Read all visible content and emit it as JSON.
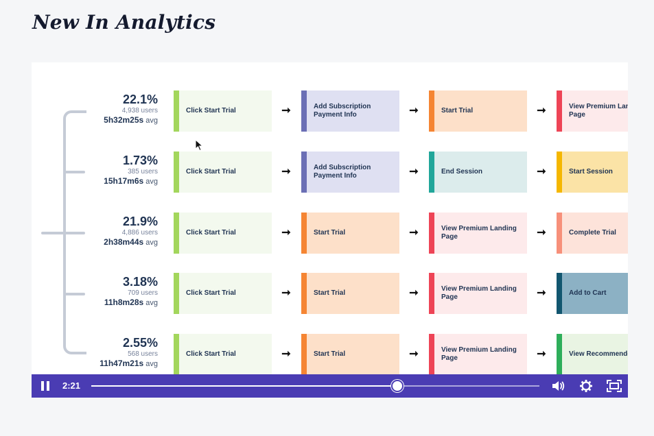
{
  "page": {
    "heading": "New In Analytics"
  },
  "video": {
    "rows": [
      {
        "percent": "22.1%",
        "users": "4,938 users",
        "avg_time": "5h32m25s",
        "avg_suffix": " avg",
        "steps": [
          {
            "label": "Click Start Trial",
            "bg": "#f3f9ee",
            "accent": "#a3d65c"
          },
          {
            "label": "Add Subscription Payment Info",
            "bg": "#dfe0f2",
            "accent": "#6b6fb5"
          },
          {
            "label": "Start Trial",
            "bg": "#fde0c9",
            "accent": "#f58533"
          },
          {
            "label": "View Premium Landing Page",
            "bg": "#fdeaeb",
            "accent": "#ee4456"
          }
        ]
      },
      {
        "percent": "1.73%",
        "users": "385 users",
        "avg_time": "15h17m6s",
        "avg_suffix": " avg",
        "steps": [
          {
            "label": "Click Start Trial",
            "bg": "#f3f9ee",
            "accent": "#a3d65c"
          },
          {
            "label": "Add Subscription Payment Info",
            "bg": "#dfe0f2",
            "accent": "#6b6fb5"
          },
          {
            "label": "End Session",
            "bg": "#dcecec",
            "accent": "#21a69a"
          },
          {
            "label": "Start Session",
            "bg": "#fbe3a6",
            "accent": "#f5b700"
          }
        ]
      },
      {
        "percent": "21.9%",
        "users": "4,886 users",
        "avg_time": "2h38m44s",
        "avg_suffix": " avg",
        "steps": [
          {
            "label": "Click Start Trial",
            "bg": "#f3f9ee",
            "accent": "#a3d65c"
          },
          {
            "label": "Start Trial",
            "bg": "#fde0c9",
            "accent": "#f58533"
          },
          {
            "label": "View Premium Landing Page",
            "bg": "#fdeaeb",
            "accent": "#ee4456"
          },
          {
            "label": "Complete Trial",
            "bg": "#fde3da",
            "accent": "#f7907a"
          }
        ]
      },
      {
        "percent": "3.18%",
        "users": "709 users",
        "avg_time": "11h8m28s",
        "avg_suffix": " avg",
        "steps": [
          {
            "label": "Click Start Trial",
            "bg": "#f3f9ee",
            "accent": "#a3d65c"
          },
          {
            "label": "Start Trial",
            "bg": "#fde0c9",
            "accent": "#f58533"
          },
          {
            "label": "View Premium Landing Page",
            "bg": "#fdeaeb",
            "accent": "#ee4456"
          },
          {
            "label": "Add to Cart",
            "bg": "#8cb1c4",
            "accent": "#12566f"
          }
        ]
      },
      {
        "percent": "2.55%",
        "users": "568 users",
        "avg_time": "11h47m21s",
        "avg_suffix": " avg",
        "steps": [
          {
            "label": "Click Start Trial",
            "bg": "#f3f9ee",
            "accent": "#a3d65c"
          },
          {
            "label": "Start Trial",
            "bg": "#fde0c9",
            "accent": "#f58533"
          },
          {
            "label": "View Premium Landing Page",
            "bg": "#fdeaeb",
            "accent": "#ee4456"
          },
          {
            "label": "View Recommended",
            "bg": "#e9f4e3",
            "accent": "#2eae5a"
          }
        ]
      }
    ],
    "arrow_glyph": "➞"
  },
  "player": {
    "time": "2:21",
    "progress": 0.683,
    "icons": [
      "pause-icon",
      "volume-icon",
      "settings-gear-icon",
      "fullscreen-icon"
    ],
    "bar_color": "#4a3cb3"
  }
}
